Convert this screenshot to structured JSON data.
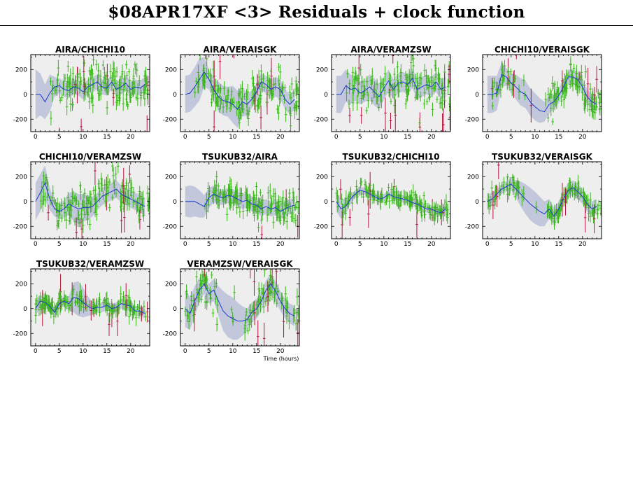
{
  "title": "$08APR17XF <3> Residuals + clock function",
  "x_axis_label": "Time (hours)",
  "colors": {
    "residual_good": "#3cb41e",
    "residual_flagged": "#b4143c",
    "clock_function": "#1e3cc8",
    "clock_uncertainty": "#c3c7dc",
    "panel_background": "#eeeeee"
  },
  "chart_data": [
    {
      "type": "scatter",
      "title": "AIRA/CHICHI10",
      "xlim": [
        -1,
        24
      ],
      "ylim": [
        -300,
        320
      ],
      "x_ticks": [
        0,
        5,
        10,
        15,
        20
      ],
      "y_ticks": [
        -200,
        0,
        200
      ],
      "clock_function": {
        "x": [
          0,
          1,
          2,
          3,
          4,
          5,
          6,
          7,
          8,
          9,
          10,
          11,
          12,
          13,
          14,
          15,
          16,
          17,
          18,
          19,
          20,
          21,
          22,
          23
        ],
        "y": [
          0,
          0,
          -60,
          10,
          60,
          70,
          40,
          30,
          60,
          50,
          20,
          60,
          80,
          100,
          60,
          50,
          100,
          40,
          60,
          90,
          40,
          60,
          50,
          80
        ]
      },
      "uncertainty_halfwidth": [
        200,
        170,
        140,
        150,
        80,
        60,
        60,
        60,
        60,
        60,
        60,
        60,
        60,
        60,
        60,
        60,
        60,
        60,
        60,
        60,
        60,
        60,
        60,
        60
      ],
      "data_span": [
        3,
        24
      ],
      "scatter_amplitude": 150
    },
    {
      "type": "scatter",
      "title": "AIRA/VERAISGK",
      "xlim": [
        -1,
        24
      ],
      "ylim": [
        -300,
        320
      ],
      "x_ticks": [
        0,
        5,
        10,
        15,
        20
      ],
      "y_ticks": [
        -200,
        0,
        200
      ],
      "clock_function": {
        "x": [
          0,
          1,
          2,
          3,
          4,
          5,
          6,
          7,
          8,
          9,
          10,
          11,
          12,
          13,
          14,
          15,
          16,
          17,
          18,
          19,
          20,
          21,
          22,
          23
        ],
        "y": [
          0,
          10,
          60,
          120,
          180,
          120,
          40,
          -20,
          -50,
          -60,
          -80,
          -120,
          -60,
          -80,
          -40,
          20,
          100,
          80,
          40,
          60,
          40,
          -40,
          -80,
          -40
        ]
      },
      "uncertainty_halfwidth": [
        150,
        150,
        160,
        170,
        120,
        80,
        90,
        120,
        120,
        120,
        150,
        150,
        120,
        90,
        70,
        70,
        70,
        70,
        80,
        80,
        80,
        80,
        80,
        80
      ],
      "data_span": [
        2,
        24
      ],
      "scatter_amplitude": 140
    },
    {
      "type": "scatter",
      "title": "AIRA/VERAMZSW",
      "xlim": [
        -1,
        24
      ],
      "ylim": [
        -300,
        320
      ],
      "x_ticks": [
        0,
        5,
        10,
        15,
        20
      ],
      "y_ticks": [
        -200,
        0,
        200
      ],
      "clock_function": {
        "x": [
          0,
          1,
          2,
          3,
          4,
          5,
          6,
          7,
          8,
          9,
          10,
          11,
          12,
          13,
          14,
          15,
          16,
          17,
          18,
          19,
          20,
          21,
          22,
          23
        ],
        "y": [
          0,
          0,
          70,
          40,
          50,
          10,
          30,
          60,
          20,
          -20,
          50,
          110,
          40,
          90,
          100,
          80,
          130,
          40,
          60,
          80,
          60,
          100,
          40,
          60
        ]
      },
      "uncertainty_halfwidth": [
        150,
        150,
        130,
        120,
        100,
        90,
        90,
        100,
        110,
        100,
        90,
        90,
        80,
        80,
        80,
        80,
        80,
        80,
        80,
        80,
        80,
        80,
        80,
        80
      ],
      "data_span": [
        2,
        24
      ],
      "scatter_amplitude": 160
    },
    {
      "type": "scatter",
      "title": "CHICHI10/VERAISGK",
      "xlim": [
        -1,
        24
      ],
      "ylim": [
        -300,
        320
      ],
      "x_ticks": [
        0,
        5,
        10,
        15,
        20
      ],
      "y_ticks": [
        -200,
        0,
        200
      ],
      "clock_function": {
        "x": [
          0,
          1,
          2,
          3,
          4,
          5,
          6,
          7,
          8,
          9,
          10,
          11,
          12,
          13,
          14,
          15,
          16,
          17,
          18,
          19,
          20,
          21,
          22,
          23
        ],
        "y": [
          0,
          0,
          10,
          160,
          140,
          90,
          60,
          20,
          0,
          -60,
          -100,
          -130,
          -140,
          -80,
          -60,
          -10,
          60,
          140,
          140,
          120,
          60,
          -20,
          -60,
          -80
        ]
      },
      "uncertainty_halfwidth": [
        150,
        150,
        140,
        100,
        70,
        80,
        100,
        110,
        110,
        110,
        110,
        100,
        80,
        70,
        60,
        60,
        60,
        60,
        60,
        60,
        60,
        60,
        60,
        60
      ],
      "data_span": [
        1,
        24
      ],
      "scatter_amplitude": 110
    },
    {
      "type": "scatter",
      "title": "CHICHI10/VERAMZSW",
      "xlim": [
        -1,
        24
      ],
      "ylim": [
        -300,
        320
      ],
      "x_ticks": [
        0,
        5,
        10,
        15,
        20
      ],
      "y_ticks": [
        -200,
        0,
        200
      ],
      "clock_function": {
        "x": [
          0,
          1,
          2,
          3,
          4,
          5,
          6,
          7,
          8,
          9,
          10,
          11,
          12,
          13,
          14,
          15,
          16,
          17,
          18,
          19,
          20,
          21,
          22,
          23
        ],
        "y": [
          0,
          70,
          150,
          20,
          -60,
          -80,
          -60,
          -20,
          -40,
          -60,
          -50,
          -50,
          -40,
          0,
          40,
          60,
          80,
          100,
          60,
          40,
          20,
          0,
          -20,
          -40
        ]
      },
      "uncertainty_halfwidth": [
        150,
        150,
        140,
        90,
        60,
        60,
        70,
        90,
        120,
        120,
        110,
        100,
        80,
        70,
        70,
        70,
        70,
        70,
        70,
        70,
        70,
        70,
        70,
        70
      ],
      "data_span": [
        1,
        24
      ],
      "scatter_amplitude": 130
    },
    {
      "type": "scatter",
      "title": "TSUKUB32/AIRA",
      "xlim": [
        -1,
        24
      ],
      "ylim": [
        -300,
        320
      ],
      "x_ticks": [
        0,
        5,
        10,
        15,
        20
      ],
      "y_ticks": [
        -200,
        0,
        200
      ],
      "clock_function": {
        "x": [
          0,
          1,
          2,
          3,
          4,
          5,
          6,
          7,
          8,
          9,
          10,
          11,
          12,
          13,
          14,
          15,
          16,
          17,
          18,
          19,
          20,
          21,
          22,
          23
        ],
        "y": [
          0,
          0,
          0,
          -20,
          -40,
          30,
          60,
          40,
          30,
          50,
          40,
          20,
          0,
          10,
          -20,
          -30,
          -60,
          -40,
          -60,
          -50,
          -80,
          -60,
          -40,
          -30
        ]
      },
      "uncertainty_halfwidth": [
        120,
        130,
        120,
        110,
        90,
        80,
        70,
        60,
        60,
        60,
        60,
        60,
        60,
        60,
        60,
        60,
        60,
        60,
        60,
        60,
        60,
        60,
        60,
        60
      ],
      "data_span": [
        4,
        24
      ],
      "scatter_amplitude": 110
    },
    {
      "type": "scatter",
      "title": "TSUKUB32/CHICHI10",
      "xlim": [
        -1,
        24
      ],
      "ylim": [
        -300,
        320
      ],
      "x_ticks": [
        0,
        5,
        10,
        15,
        20
      ],
      "y_ticks": [
        -200,
        0,
        200
      ],
      "clock_function": {
        "x": [
          0,
          1,
          2,
          3,
          4,
          5,
          6,
          7,
          8,
          9,
          10,
          11,
          12,
          13,
          14,
          15,
          16,
          17,
          18,
          19,
          20,
          21,
          22,
          23
        ],
        "y": [
          0,
          -60,
          -40,
          20,
          60,
          90,
          80,
          60,
          40,
          20,
          30,
          60,
          40,
          30,
          20,
          10,
          -10,
          -20,
          -40,
          -60,
          -60,
          -80,
          -90,
          -60
        ]
      },
      "uncertainty_halfwidth": [
        80,
        80,
        60,
        40,
        30,
        30,
        30,
        30,
        30,
        30,
        30,
        30,
        30,
        30,
        30,
        30,
        30,
        30,
        30,
        30,
        30,
        30,
        30,
        30
      ],
      "data_span": [
        0,
        24
      ],
      "scatter_amplitude": 70
    },
    {
      "type": "scatter",
      "title": "TSUKUB32/VERAISGK",
      "xlim": [
        -1,
        24
      ],
      "ylim": [
        -300,
        320
      ],
      "x_ticks": [
        0,
        5,
        10,
        15,
        20
      ],
      "y_ticks": [
        -200,
        0,
        200
      ],
      "clock_function": {
        "x": [
          0,
          1,
          2,
          3,
          4,
          5,
          6,
          7,
          8,
          9,
          10,
          11,
          12,
          13,
          14,
          15,
          16,
          17,
          18,
          19,
          20,
          21,
          22,
          23
        ],
        "y": [
          0,
          20,
          60,
          100,
          120,
          140,
          100,
          60,
          20,
          -20,
          -50,
          -80,
          -100,
          -60,
          -120,
          -60,
          20,
          90,
          110,
          80,
          40,
          -20,
          -60,
          -40
        ]
      },
      "uncertainty_halfwidth": [
        60,
        50,
        40,
        40,
        40,
        50,
        70,
        100,
        120,
        130,
        130,
        120,
        100,
        80,
        70,
        60,
        60,
        60,
        60,
        60,
        60,
        60,
        60,
        60
      ],
      "data_span": [
        0,
        24
      ],
      "scatter_amplitude": 60
    },
    {
      "type": "scatter",
      "title": "TSUKUB32/VERAMZSW",
      "xlim": [
        -1,
        24
      ],
      "ylim": [
        -300,
        320
      ],
      "x_ticks": [
        0,
        5,
        10,
        15,
        20
      ],
      "y_ticks": [
        -200,
        0,
        200
      ],
      "clock_function": {
        "x": [
          0,
          1,
          2,
          3,
          4,
          5,
          6,
          7,
          8,
          9,
          10,
          11,
          12,
          13,
          14,
          15,
          16,
          17,
          18,
          19,
          20,
          21,
          22,
          23
        ],
        "y": [
          0,
          60,
          50,
          20,
          -30,
          40,
          60,
          40,
          90,
          80,
          50,
          20,
          0,
          10,
          10,
          30,
          0,
          10,
          40,
          30,
          20,
          -20,
          -20,
          -40
        ]
      },
      "uncertainty_halfwidth": [
        60,
        50,
        40,
        40,
        40,
        40,
        40,
        60,
        120,
        140,
        120,
        80,
        50,
        40,
        40,
        40,
        40,
        40,
        40,
        40,
        40,
        40,
        40,
        40
      ],
      "data_span": [
        0,
        24
      ],
      "scatter_amplitude": 60
    },
    {
      "type": "scatter",
      "title": "VERAMZSW/VERAISGK",
      "xlim": [
        -1,
        24
      ],
      "ylim": [
        -300,
        320
      ],
      "x_ticks": [
        0,
        5,
        10,
        15,
        20
      ],
      "y_ticks": [
        -200,
        0,
        200
      ],
      "clock_function": {
        "x": [
          0,
          1,
          2,
          3,
          4,
          5,
          6,
          7,
          8,
          9,
          10,
          11,
          12,
          13,
          14,
          15,
          16,
          17,
          18,
          19,
          20,
          21,
          22,
          23
        ],
        "y": [
          0,
          -40,
          60,
          150,
          200,
          120,
          150,
          60,
          -20,
          -60,
          -80,
          -100,
          -100,
          -90,
          -30,
          0,
          60,
          150,
          200,
          140,
          60,
          0,
          -40,
          -60
        ]
      },
      "uncertainty_halfwidth": [
        150,
        130,
        120,
        100,
        80,
        80,
        90,
        120,
        160,
        170,
        170,
        150,
        120,
        90,
        80,
        80,
        80,
        80,
        80,
        80,
        80,
        80,
        80,
        80
      ],
      "data_span": [
        0,
        24
      ],
      "scatter_amplitude": 130
    }
  ]
}
